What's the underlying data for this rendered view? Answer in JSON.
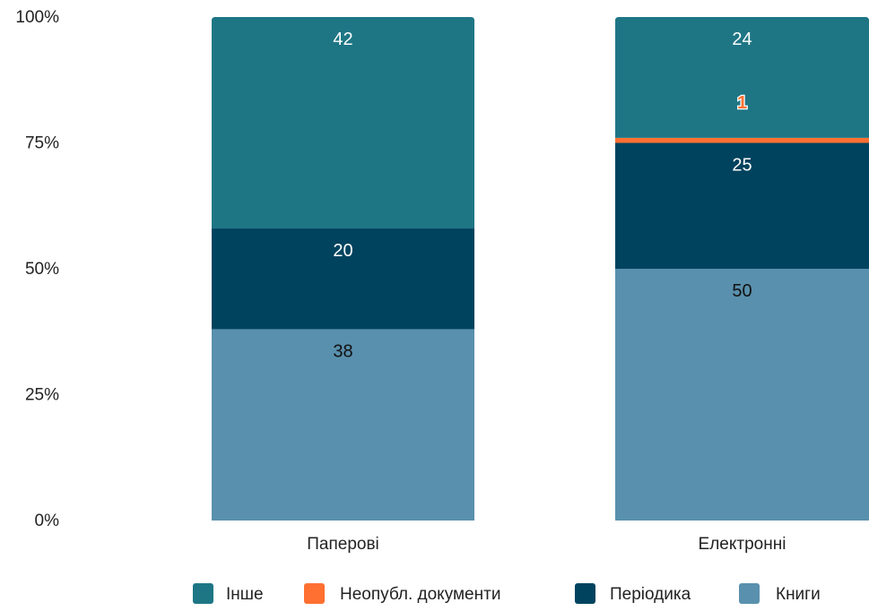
{
  "chart_data": {
    "type": "bar",
    "stacked": true,
    "normalized": true,
    "title": "",
    "xlabel": "",
    "ylabel": "",
    "ylim": [
      0,
      100
    ],
    "y_ticks": [
      "0%",
      "25%",
      "50%",
      "75%",
      "100%"
    ],
    "y_tick_values": [
      0,
      25,
      50,
      75,
      100
    ],
    "categories": [
      "Паперові",
      "Електронні"
    ],
    "series": [
      {
        "name": "Книги",
        "values": [
          38,
          50
        ],
        "color": "#5990ad",
        "label_color": "#111111"
      },
      {
        "name": "Періодика",
        "values": [
          20,
          25
        ],
        "color": "#00435e",
        "label_color": "#ffffff"
      },
      {
        "name": "Неопубл. документи",
        "values": [
          0,
          1
        ],
        "color": "#ff7031",
        "label_color": "#ff7031"
      },
      {
        "name": "Інше",
        "values": [
          42,
          24
        ],
        "color": "#1e7685",
        "label_color": "#ffffff"
      }
    ],
    "legend": {
      "position": "bottom",
      "order": [
        "Інше",
        "Неопубл. документи",
        "Періодика",
        "Книги"
      ]
    },
    "grid": false
  }
}
